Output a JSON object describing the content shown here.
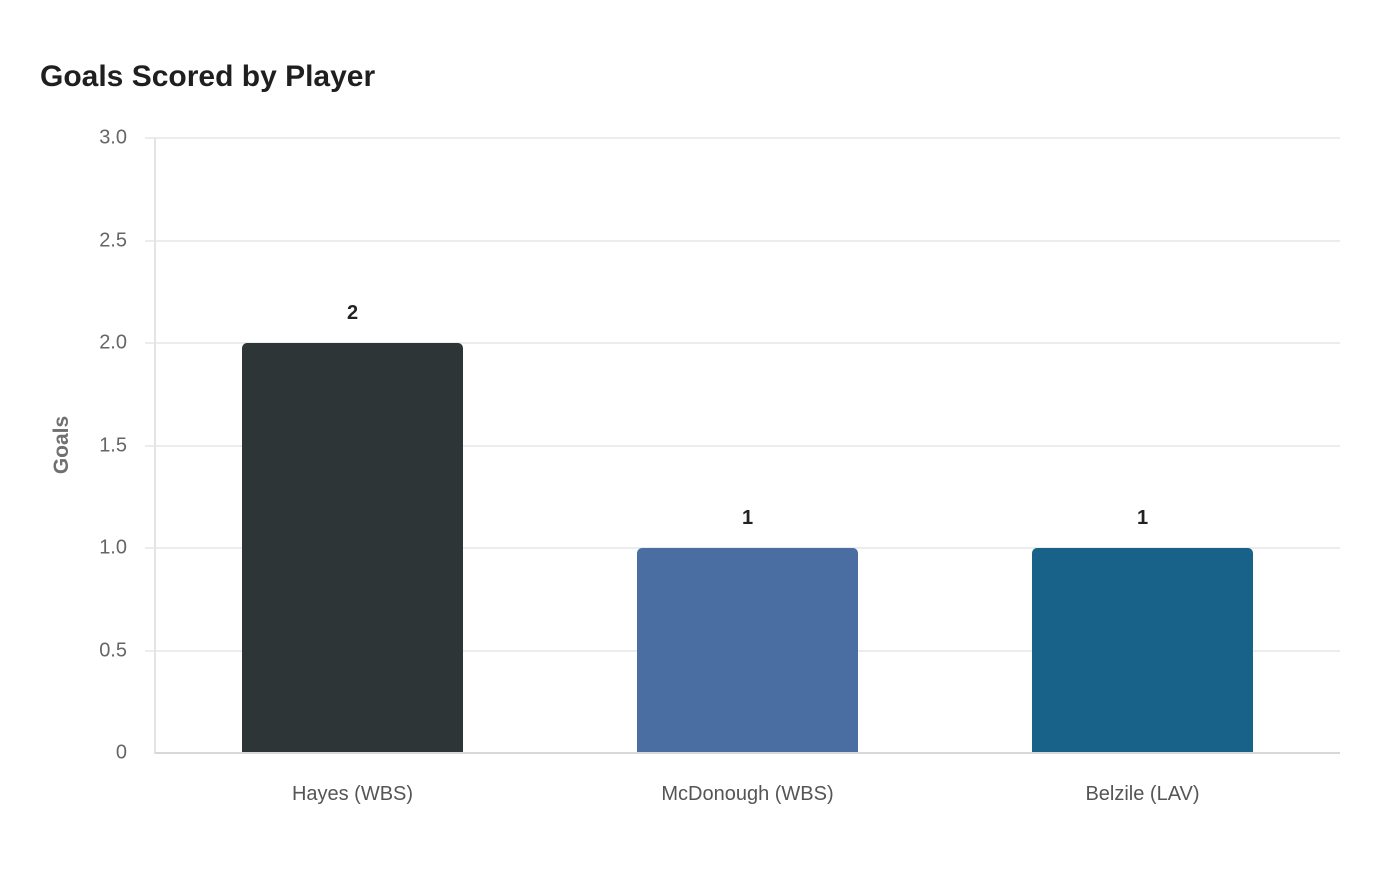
{
  "chart_data": {
    "type": "bar",
    "title": "Goals Scored by Player",
    "xlabel": "",
    "ylabel": "Goals",
    "ylim": [
      0,
      3.0
    ],
    "yticks": [
      "0",
      "0.5",
      "1.0",
      "1.5",
      "2.0",
      "2.5",
      "3.0"
    ],
    "grid": true,
    "legend": "none",
    "categories": [
      "Hayes (WBS)",
      "McDonough (WBS)",
      "Belzile (LAV)"
    ],
    "values": [
      2,
      1,
      1
    ],
    "value_labels": [
      "2",
      "1",
      "1"
    ],
    "colors": [
      "#2e3537",
      "#4a6ea2",
      "#186188"
    ]
  }
}
